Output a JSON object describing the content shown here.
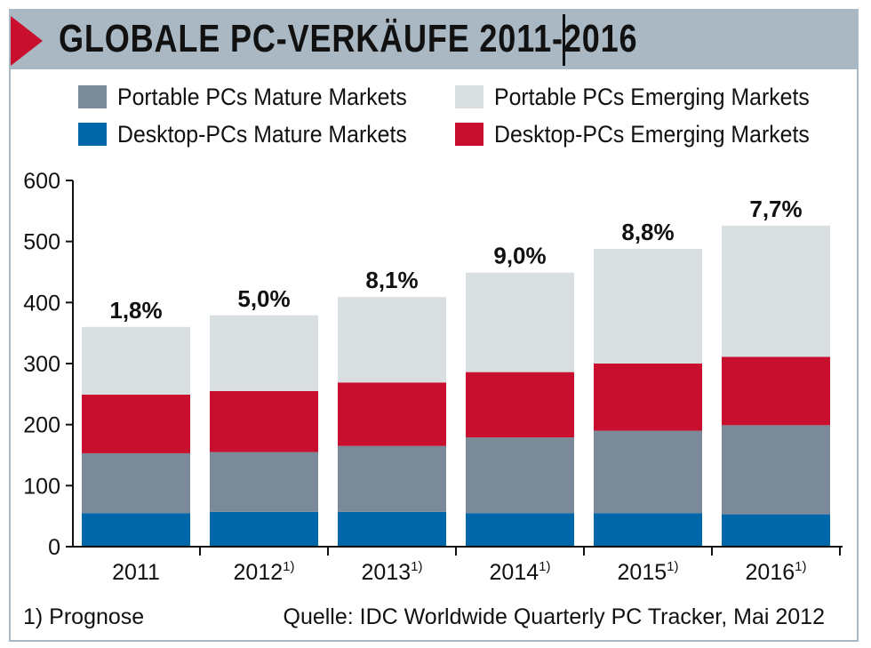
{
  "chart_data": {
    "type": "bar",
    "stacked": true,
    "title": "GLOBALE PC-VERKÄUFE 2011-2016",
    "categories": [
      "2011",
      "2012",
      "2013",
      "2014",
      "2015",
      "2016"
    ],
    "category_superscripts": [
      "",
      "1)",
      "1)",
      "1)",
      "1)",
      "1)"
    ],
    "series": [
      {
        "name": "Desktop-PCs Mature Markets",
        "color": "#0068a8",
        "values": [
          55,
          57,
          57,
          55,
          55,
          53
        ]
      },
      {
        "name": "Portable PCs Mature Markets",
        "color": "#7a8a99",
        "values": [
          98,
          98,
          108,
          124,
          135,
          146
        ]
      },
      {
        "name": "Desktop-PCs Emerging Markets",
        "color": "#c8102e",
        "values": [
          96,
          100,
          104,
          107,
          110,
          112
        ]
      },
      {
        "name": "Portable PCs Emerging Markets",
        "color": "#d9dee1",
        "values": [
          111,
          124,
          140,
          163,
          188,
          215
        ]
      }
    ],
    "data_labels": [
      "1,8%",
      "5,0%",
      "8,1%",
      "9,0%",
      "8,8%",
      "7,7%"
    ],
    "ylim": [
      0,
      600
    ],
    "yticks": [
      0,
      100,
      200,
      300,
      400,
      500,
      600
    ],
    "legend_placement": "top",
    "grid": false
  },
  "legend": [
    {
      "label": "Portable PCs Mature Markets",
      "color": "#7a8a99"
    },
    {
      "label": "Portable PCs Emerging Markets",
      "color": "#d9dee1"
    },
    {
      "label": "Desktop-PCs Mature Markets",
      "color": "#0068a8"
    },
    {
      "label": "Desktop-PCs Emerging Markets",
      "color": "#c8102e"
    }
  ],
  "footer": {
    "note": "1) Prognose",
    "source": "Quelle: IDC Worldwide Quarterly PC Tracker, Mai 2012"
  },
  "colors": {
    "accent": "#c8102e",
    "header": "#a9b8c2"
  }
}
